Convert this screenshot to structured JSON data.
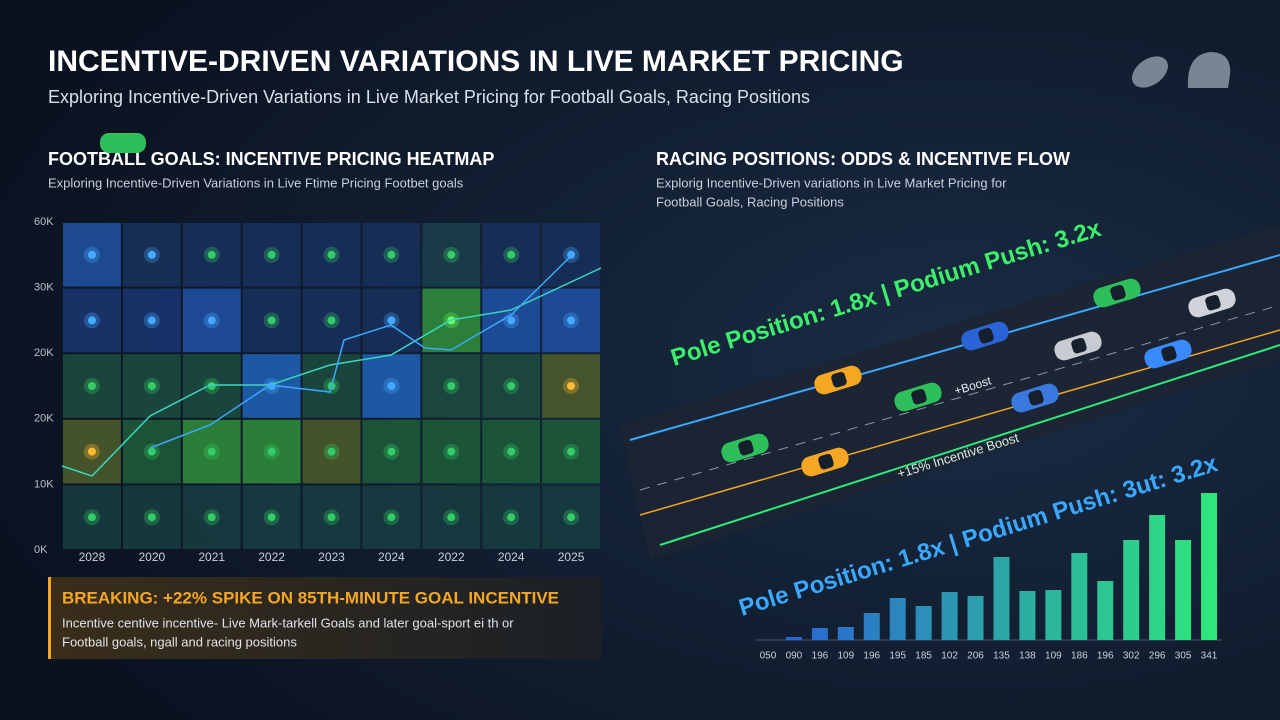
{
  "header": {
    "title": "INCENTIVE-DRIVEN VARIATIONS IN LIVE MARKET PRICING",
    "subtitle": "Exploring Incentive-Driven Variations in Live Market Pricing for Football Goals, Racing Positions"
  },
  "left_panel": {
    "title": "FOOTBALL GOALS: INCENTIVE PRICING HEATMAP",
    "subtitle": "Exploring Incentive-Driven Variations in Live Ftime Pricing Footbet goals",
    "breaking": {
      "headline": "BREAKING: +22% SPIKE ON 85TH-MINUTE GOAL INCENTIVE",
      "lines": [
        "Incentive centive incentive- Live Mark-tarkell Goals and later goal-sport ei th or",
        "Football goals, ngall and racing positions"
      ]
    }
  },
  "right_panel": {
    "title": "RACING POSITIONS: ODDS & INCENTIVE FLOW",
    "subtitle_lines": [
      "Explorig Incentive-Driven variations in Live Market Pricing for",
      "Football Goals, Racing Positions"
    ],
    "track_labels": {
      "top": "Pole Position: 1.8x | Podium Push: 3.2x",
      "boost": "+Boost",
      "incentive": "+15% Incentive Boost",
      "bottom": "Pole Position:  1.8x | Podium Push: 3ut: 3.2x"
    }
  },
  "chart_data": [
    {
      "type": "heatmap",
      "categories": [
        "2028",
        "2020",
        "2021",
        "2022",
        "2023",
        "2024",
        "2022",
        "2024",
        "2025"
      ],
      "y_labels": [
        "60K",
        "30K",
        "20K",
        "20K",
        "10K",
        "0K"
      ],
      "cell_colors": [
        [
          "#1f4f9a",
          "#17305a",
          "#17305a",
          "#17305a",
          "#17305a",
          "#17305a",
          "#1b3d4a",
          "#17305a",
          "#17305a"
        ],
        [
          "#1a3570",
          "#1a3570",
          "#1f4fa0",
          "#17305a",
          "#17305a",
          "#17305a",
          "#2f8a3a",
          "#1f4fa0",
          "#1f4fa0"
        ],
        [
          "#1c4a3e",
          "#1c4a3e",
          "#1c4a3e",
          "#1f5fb0",
          "#1c4a3e",
          "#1f5fb0",
          "#1c4a3e",
          "#1c4a3e",
          "#4a5a2a"
        ],
        [
          "#4a5a2a",
          "#1e5a3a",
          "#2f8a3a",
          "#2f8a3a",
          "#4a5a2a",
          "#1e5a3a",
          "#1e5a3a",
          "#1e5a3a",
          "#1e5a3a"
        ],
        [
          "#173c40",
          "#173c40",
          "#173c40",
          "#173c40",
          "#173c40",
          "#173c40",
          "#173c40",
          "#173c40",
          "#173c40"
        ]
      ],
      "dot_colors": [
        [
          "#44aaff",
          "#44aaff",
          "#33cc66",
          "#33cc66",
          "#33cc66",
          "#33cc66",
          "#33cc66",
          "#33cc66",
          "#44aaff"
        ],
        [
          "#44aaff",
          "#44aaff",
          "#44aaff",
          "#33cc66",
          "#33cc66",
          "#44aaff",
          "#66ff66",
          "#44aaff",
          "#44aaff"
        ],
        [
          "#33cc66",
          "#33cc66",
          "#33cc66",
          "#44aaff",
          "#33cc66",
          "#44aaff",
          "#33cc66",
          "#33cc66",
          "#ffbb33"
        ],
        [
          "#ffbb33",
          "#33cc66",
          "#33cc66",
          "#33cc66",
          "#33cc66",
          "#33cc66",
          "#33cc66",
          "#33cc66",
          "#33cc66"
        ],
        [
          "#33cc66",
          "#33cc66",
          "#33cc66",
          "#33cc66",
          "#33cc66",
          "#33cc66",
          "#33cc66",
          "#33cc66",
          "#33cc66"
        ]
      ]
    },
    {
      "type": "bar",
      "categories": [
        "050",
        "090",
        "196",
        "109",
        "196",
        "195",
        "185",
        "102",
        "206",
        "135",
        "138",
        "109",
        "186",
        "196",
        "302",
        "296",
        "305",
        "341"
      ],
      "values": [
        0,
        3,
        12,
        13,
        27,
        42,
        34,
        48,
        44,
        83,
        49,
        50,
        87,
        59,
        100,
        125,
        100,
        147
      ],
      "ylim": [
        0,
        150
      ]
    }
  ]
}
